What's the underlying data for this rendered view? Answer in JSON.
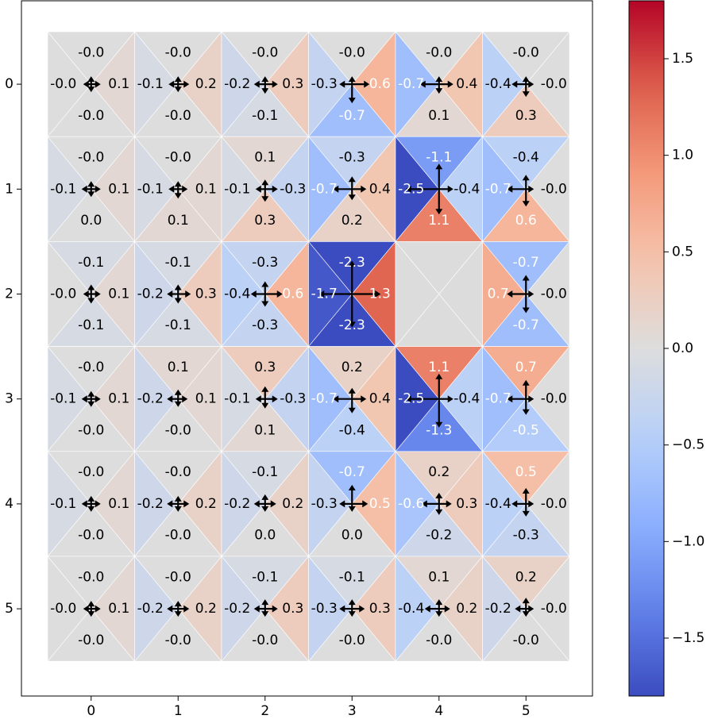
{
  "chart_data": {
    "type": "heatmap",
    "title": "",
    "xlabel": "",
    "ylabel": "",
    "x_ticks": [
      "0",
      "1",
      "2",
      "3",
      "4",
      "5"
    ],
    "y_ticks": [
      "0",
      "1",
      "2",
      "3",
      "4",
      "5"
    ],
    "colormap": "coolwarm",
    "vmin": -1.8,
    "vmax": 1.8,
    "colorbar_ticks": [
      "1.5",
      "1.0",
      "0.5",
      "0.0",
      "−0.5",
      "−1.0",
      "−1.5"
    ],
    "colorbar_tick_values": [
      1.5,
      1.0,
      0.5,
      0.0,
      -0.5,
      -1.0,
      -1.5
    ],
    "empty_cells": [
      [
        2,
        4
      ]
    ],
    "top": [
      [
        "-0.0",
        "-0.0",
        "-0.0",
        "-0.0",
        "-0.0",
        "-0.0"
      ],
      [
        "-0.0",
        "-0.0",
        "0.1",
        "-0.3",
        "-1.1",
        "-0.4"
      ],
      [
        "-0.1",
        "-0.1",
        "-0.3",
        "-2.3",
        "",
        "-0.7"
      ],
      [
        "-0.0",
        "0.1",
        "0.3",
        "0.2",
        "1.1",
        "0.7"
      ],
      [
        "-0.0",
        "-0.0",
        "-0.1",
        "-0.7",
        "0.2",
        "0.5"
      ],
      [
        "-0.0",
        "-0.0",
        "-0.1",
        "-0.1",
        "0.1",
        "0.2"
      ]
    ],
    "bottom": [
      [
        "-0.0",
        "-0.0",
        "-0.1",
        "-0.7",
        "0.1",
        "0.3"
      ],
      [
        "0.0",
        "0.1",
        "0.3",
        "0.2",
        "1.1",
        "0.6"
      ],
      [
        "-0.1",
        "-0.1",
        "-0.3",
        "-2.3",
        "",
        "-0.7"
      ],
      [
        "-0.0",
        "-0.0",
        "0.1",
        "-0.4",
        "-1.3",
        "-0.5"
      ],
      [
        "-0.0",
        "-0.0",
        "0.0",
        "0.0",
        "-0.2",
        "-0.3"
      ],
      [
        "-0.0",
        "-0.0",
        "-0.0",
        "-0.0",
        "-0.0",
        "-0.0"
      ]
    ],
    "left": [
      [
        "-0.0",
        "-0.1",
        "-0.2",
        "-0.3",
        "-0.7",
        "-0.4"
      ],
      [
        "-0.1",
        "-0.1",
        "-0.1",
        "-0.7",
        "-2.5",
        "-0.7"
      ],
      [
        "-0.0",
        "-0.2",
        "-0.4",
        "-1.7",
        "",
        "0.7"
      ],
      [
        "-0.1",
        "-0.2",
        "-0.1",
        "-0.7",
        "-2.5",
        "-0.7"
      ],
      [
        "-0.1",
        "-0.2",
        "-0.2",
        "-0.3",
        "-0.6",
        "-0.4"
      ],
      [
        "-0.0",
        "-0.2",
        "-0.2",
        "-0.3",
        "-0.4",
        "-0.2"
      ]
    ],
    "right": [
      [
        "0.1",
        "0.2",
        "0.3",
        "0.6",
        "0.4",
        "-0.0"
      ],
      [
        "0.1",
        "0.1",
        "-0.3",
        "0.4",
        "-0.4",
        "-0.0"
      ],
      [
        "0.1",
        "0.3",
        "0.6",
        "1.3",
        "",
        "-0.0"
      ],
      [
        "0.1",
        "0.1",
        "-0.3",
        "0.4",
        "-0.4",
        "-0.0"
      ],
      [
        "0.1",
        "0.2",
        "0.2",
        "0.5",
        "0.3",
        "-0.0"
      ],
      [
        "0.1",
        "0.2",
        "0.3",
        "0.3",
        "0.2",
        "-0.0"
      ]
    ]
  }
}
